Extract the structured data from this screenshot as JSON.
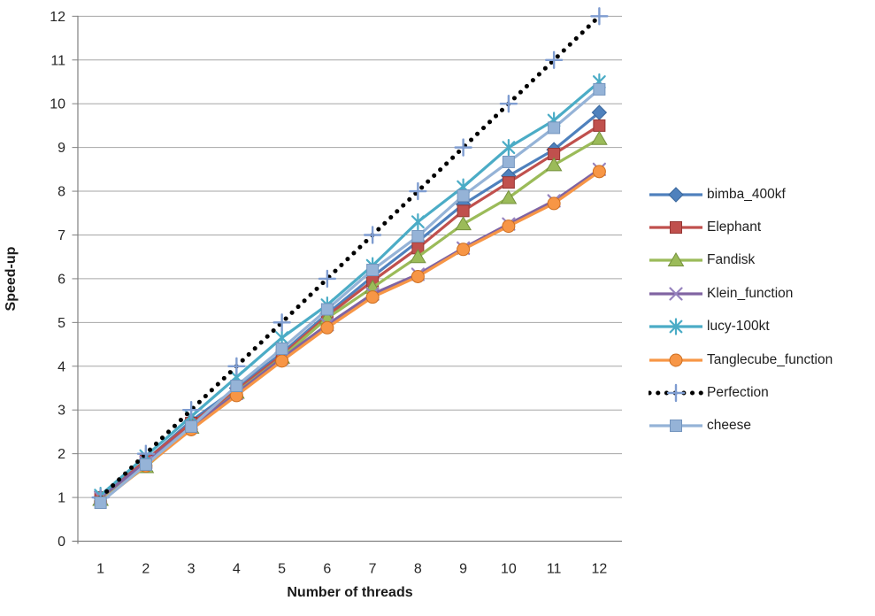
{
  "chart_data": {
    "type": "line",
    "title": "",
    "xlabel": "Number of threads",
    "ylabel": "Speed-up",
    "x": [
      1,
      2,
      3,
      4,
      5,
      6,
      7,
      8,
      9,
      10,
      11,
      12
    ],
    "ylim": [
      0,
      12
    ],
    "yticks": [
      0,
      1,
      2,
      3,
      4,
      5,
      6,
      7,
      8,
      9,
      10,
      11,
      12
    ],
    "grid": "horizontal-only",
    "legend_position": "right-middle",
    "colors": {
      "axis": "#808080",
      "gridline": "#A6A6A6",
      "tick_text": "#262626",
      "background": "#FFFFFF"
    },
    "series": [
      {
        "name": "bimba_400kf",
        "marker": "diamond",
        "color": "#4F81BD",
        "marker_border": "#3A679C",
        "line": "solid",
        "values": [
          1.0,
          1.85,
          2.75,
          3.5,
          4.3,
          5.2,
          6.05,
          6.85,
          7.7,
          8.35,
          8.95,
          9.8
        ]
      },
      {
        "name": "Elephant",
        "marker": "square",
        "color": "#C0504D",
        "marker_border": "#963634",
        "line": "solid",
        "values": [
          1.0,
          1.85,
          2.7,
          3.45,
          4.25,
          5.15,
          5.95,
          6.7,
          7.55,
          8.2,
          8.85,
          9.5
        ]
      },
      {
        "name": "Fandisk",
        "marker": "triangle",
        "color": "#9BBB59",
        "marker_border": "#75913D",
        "line": "solid",
        "values": [
          0.95,
          1.7,
          2.6,
          3.4,
          4.2,
          5.1,
          5.8,
          6.5,
          7.25,
          7.85,
          8.6,
          9.2
        ]
      },
      {
        "name": "Klein_function",
        "marker": "x",
        "color": "#8064A2",
        "marker_border": "#9683BE",
        "line": "solid",
        "values": [
          1.0,
          1.8,
          2.62,
          3.38,
          4.18,
          4.95,
          5.65,
          6.1,
          6.7,
          7.25,
          7.78,
          8.5
        ]
      },
      {
        "name": "lucy-100kt",
        "marker": "asterisk",
        "color": "#4BACC6",
        "marker_border": "#4BACC6",
        "line": "solid",
        "values": [
          1.05,
          1.95,
          2.85,
          3.75,
          4.65,
          5.4,
          6.3,
          7.3,
          8.1,
          9.0,
          9.62,
          10.5
        ]
      },
      {
        "name": "Tanglecube_function",
        "marker": "circle",
        "color": "#F79646",
        "marker_border": "#CE6F21",
        "line": "solid",
        "values": [
          0.9,
          1.72,
          2.55,
          3.33,
          4.12,
          4.88,
          5.58,
          6.05,
          6.67,
          7.2,
          7.72,
          8.45
        ]
      },
      {
        "name": "Perfection",
        "marker": "plus",
        "color": "#000000",
        "marker_border": "#7E9CD0",
        "line": "dotted",
        "values": [
          1,
          2,
          3,
          4,
          5,
          6,
          7,
          8,
          9,
          10,
          11,
          12
        ]
      },
      {
        "name": "cheese",
        "marker": "square",
        "color": "#95B3D7",
        "marker_border": "#7495BE",
        "line": "solid",
        "values": [
          0.88,
          1.75,
          2.62,
          3.55,
          4.4,
          5.3,
          6.2,
          6.97,
          7.9,
          8.67,
          9.45,
          10.33
        ]
      }
    ]
  }
}
